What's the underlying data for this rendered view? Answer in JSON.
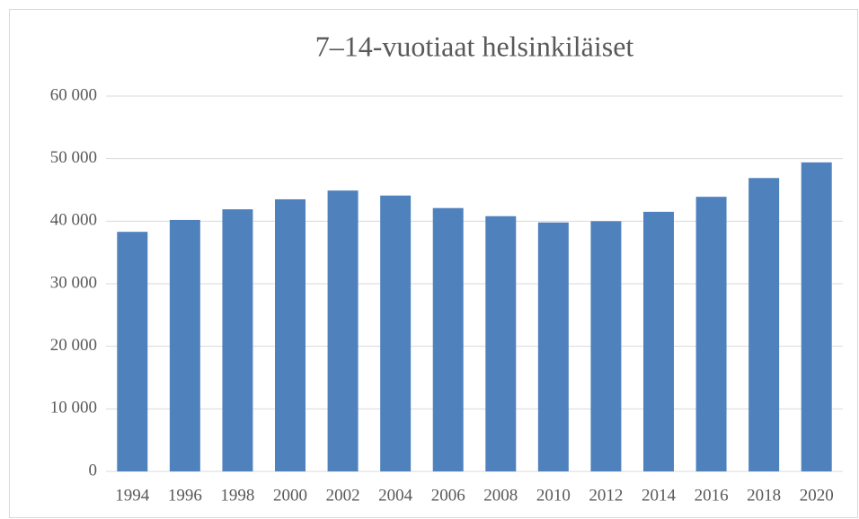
{
  "chart_data": {
    "type": "bar",
    "title": "7–14-vuotiaat helsinkiläiset",
    "categories": [
      "1994",
      "1996",
      "1998",
      "2000",
      "2002",
      "2004",
      "2006",
      "2008",
      "2010",
      "2012",
      "2014",
      "2016",
      "2018",
      "2020"
    ],
    "values": [
      38300,
      40200,
      41900,
      43500,
      44900,
      44100,
      42100,
      40800,
      39800,
      40000,
      41500,
      43900,
      46900,
      49400
    ],
    "color": "#4f81bd",
    "ylim": [
      0,
      60000
    ],
    "yticks": [
      0,
      {
        "value": 10000,
        "label": "10 000"
      },
      {
        "value": 20000,
        "label": "20 000"
      },
      {
        "value": 30000,
        "label": "30 000"
      },
      {
        "value": 40000,
        "label": "40 000"
      },
      {
        "value": 50000,
        "label": "50 000"
      },
      {
        "value": 60000,
        "label": "60 000"
      }
    ],
    "grid": true
  }
}
